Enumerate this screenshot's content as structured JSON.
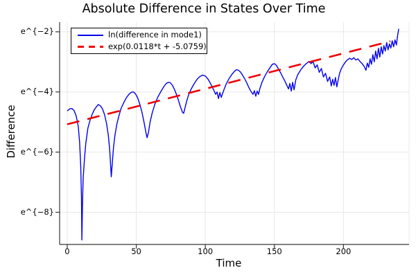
{
  "chart_data": {
    "type": "line",
    "title": "Absolute Difference in States Over Time",
    "xlabel": "Time",
    "ylabel": "Difference",
    "yscale": "ln (y axis labeled as powers of e)",
    "xlim": [
      -5.5,
      247.5
    ],
    "ylim_ln": [
      -9.07,
      -1.68
    ],
    "grid": true,
    "legend_position": "top-left",
    "xticks": {
      "values": [
        0,
        50,
        100,
        150,
        200
      ],
      "labels": [
        "0",
        "50",
        "100",
        "150",
        "200"
      ]
    },
    "yticks": {
      "values_ln": [
        -2,
        -4,
        -6,
        -8
      ],
      "labels": [
        "e^{−2}",
        "e^{−4}",
        "e^{−6}",
        "e^{−8}"
      ]
    },
    "colors": {
      "series": "#0000ee",
      "fit": "#ee0000",
      "grid": "#e8e8e8",
      "axis": "#363636",
      "text": "#000000",
      "background": "#ffffff"
    },
    "series": [
      {
        "name": "ln(difference in mode1)",
        "color": "#0000ee",
        "style": "solid",
        "points_t_ln": [
          [
            0,
            -4.63
          ],
          [
            2,
            -4.56
          ],
          [
            3.5,
            -4.55
          ],
          [
            5,
            -4.62
          ],
          [
            6.5,
            -4.8
          ],
          [
            8,
            -5.15
          ],
          [
            9,
            -5.7
          ],
          [
            9.8,
            -6.5
          ],
          [
            10.3,
            -7.5
          ],
          [
            10.6,
            -8.92
          ],
          [
            11,
            -7.8
          ],
          [
            11.5,
            -6.9
          ],
          [
            12.5,
            -6.2
          ],
          [
            13.5,
            -5.7
          ],
          [
            15,
            -5.2
          ],
          [
            16.5,
            -4.95
          ],
          [
            18,
            -4.75
          ],
          [
            19.5,
            -4.6
          ],
          [
            21,
            -4.5
          ],
          [
            22.5,
            -4.42
          ],
          [
            24,
            -4.46
          ],
          [
            25.5,
            -4.56
          ],
          [
            27,
            -4.75
          ],
          [
            28.5,
            -5.05
          ],
          [
            29.8,
            -5.45
          ],
          [
            30.8,
            -5.95
          ],
          [
            31.5,
            -6.5
          ],
          [
            31.9,
            -6.82
          ],
          [
            32.5,
            -6.45
          ],
          [
            33.5,
            -5.85
          ],
          [
            34.5,
            -5.45
          ],
          [
            36,
            -5.05
          ],
          [
            37.5,
            -4.78
          ],
          [
            39,
            -4.55
          ],
          [
            41,
            -4.35
          ],
          [
            43,
            -4.18
          ],
          [
            45,
            -4.06
          ],
          [
            46.5,
            -4.01
          ],
          [
            48,
            -4.0
          ],
          [
            49.5,
            -4.07
          ],
          [
            51,
            -4.2
          ],
          [
            52.5,
            -4.4
          ],
          [
            54,
            -4.65
          ],
          [
            55.5,
            -4.98
          ],
          [
            56.8,
            -5.3
          ],
          [
            57.8,
            -5.52
          ],
          [
            58.8,
            -5.35
          ],
          [
            60,
            -5.0
          ],
          [
            61.5,
            -4.7
          ],
          [
            63.5,
            -4.4
          ],
          [
            65.5,
            -4.18
          ],
          [
            68,
            -3.97
          ],
          [
            70,
            -3.82
          ],
          [
            71.5,
            -3.73
          ],
          [
            73,
            -3.68
          ],
          [
            74.5,
            -3.69
          ],
          [
            76,
            -3.77
          ],
          [
            77.5,
            -3.9
          ],
          [
            79,
            -4.07
          ],
          [
            80.5,
            -4.27
          ],
          [
            82,
            -4.5
          ],
          [
            83.5,
            -4.68
          ],
          [
            84.3,
            -4.71
          ],
          [
            85.3,
            -4.52
          ],
          [
            86.5,
            -4.3
          ],
          [
            88,
            -4.08
          ],
          [
            90,
            -3.88
          ],
          [
            92,
            -3.72
          ],
          [
            94,
            -3.58
          ],
          [
            96,
            -3.49
          ],
          [
            98,
            -3.44
          ],
          [
            100,
            -3.47
          ],
          [
            102,
            -3.58
          ],
          [
            104,
            -3.74
          ],
          [
            106,
            -3.93
          ],
          [
            107.5,
            -4.08
          ],
          [
            108.5,
            -4.0
          ],
          [
            109.5,
            -4.22
          ],
          [
            110.5,
            -4.02
          ],
          [
            111.5,
            -4.18
          ],
          [
            112.5,
            -4.05
          ],
          [
            113.5,
            -3.92
          ],
          [
            115,
            -3.75
          ],
          [
            117,
            -3.57
          ],
          [
            119,
            -3.43
          ],
          [
            121,
            -3.32
          ],
          [
            122.5,
            -3.26
          ],
          [
            124,
            -3.28
          ],
          [
            125.5,
            -3.34
          ],
          [
            127,
            -3.45
          ],
          [
            128.5,
            -3.56
          ],
          [
            130,
            -3.7
          ],
          [
            131.5,
            -3.85
          ],
          [
            133,
            -3.98
          ],
          [
            134.5,
            -4.08
          ],
          [
            135.5,
            -3.96
          ],
          [
            136.5,
            -4.14
          ],
          [
            137.5,
            -3.97
          ],
          [
            138.5,
            -4.08
          ],
          [
            139.5,
            -3.88
          ],
          [
            141,
            -3.68
          ],
          [
            143,
            -3.48
          ],
          [
            145,
            -3.32
          ],
          [
            147,
            -3.18
          ],
          [
            148.5,
            -3.08
          ],
          [
            150,
            -3.06
          ],
          [
            151.5,
            -3.12
          ],
          [
            153,
            -3.24
          ],
          [
            154.5,
            -3.36
          ],
          [
            156,
            -3.5
          ],
          [
            157.5,
            -3.63
          ],
          [
            159,
            -3.78
          ],
          [
            160.2,
            -3.9
          ],
          [
            161.2,
            -3.72
          ],
          [
            162.2,
            -3.97
          ],
          [
            163.2,
            -3.68
          ],
          [
            164.2,
            -3.93
          ],
          [
            165.5,
            -3.6
          ],
          [
            167,
            -3.42
          ],
          [
            169,
            -3.27
          ],
          [
            171,
            -3.15
          ],
          [
            173,
            -3.06
          ],
          [
            175,
            -2.99
          ],
          [
            176.5,
            -3.06
          ],
          [
            178,
            -2.99
          ],
          [
            179.5,
            -3.2
          ],
          [
            181,
            -3.1
          ],
          [
            182.5,
            -3.35
          ],
          [
            184,
            -3.22
          ],
          [
            185.5,
            -3.5
          ],
          [
            187,
            -3.38
          ],
          [
            188.5,
            -3.65
          ],
          [
            190,
            -3.5
          ],
          [
            191.2,
            -3.8
          ],
          [
            192.2,
            -3.58
          ],
          [
            193.2,
            -3.78
          ],
          [
            194.2,
            -3.52
          ],
          [
            195.2,
            -3.83
          ],
          [
            196.2,
            -3.6
          ],
          [
            197.2,
            -3.38
          ],
          [
            198.5,
            -3.22
          ],
          [
            200,
            -3.1
          ],
          [
            201.5,
            -3.0
          ],
          [
            203,
            -2.93
          ],
          [
            204.5,
            -2.88
          ],
          [
            206,
            -2.92
          ],
          [
            207.5,
            -2.86
          ],
          [
            209,
            -2.94
          ],
          [
            210.5,
            -2.9
          ],
          [
            212,
            -2.99
          ],
          [
            213.5,
            -3.06
          ],
          [
            215,
            -3.15
          ],
          [
            216.3,
            -3.28
          ],
          [
            217.3,
            -3.04
          ],
          [
            218.3,
            -3.18
          ],
          [
            219.3,
            -2.9
          ],
          [
            220.3,
            -3.08
          ],
          [
            221.3,
            -2.76
          ],
          [
            222.3,
            -3.0
          ],
          [
            223.3,
            -2.64
          ],
          [
            224.3,
            -2.9
          ],
          [
            225.3,
            -2.55
          ],
          [
            226.3,
            -2.84
          ],
          [
            227.3,
            -2.5
          ],
          [
            228.3,
            -2.74
          ],
          [
            229.3,
            -2.46
          ],
          [
            230.3,
            -2.64
          ],
          [
            231.3,
            -2.36
          ],
          [
            232.3,
            -2.6
          ],
          [
            233.3,
            -2.4
          ],
          [
            234.3,
            -2.54
          ],
          [
            235.3,
            -2.3
          ],
          [
            236.3,
            -2.5
          ],
          [
            237.3,
            -2.27
          ],
          [
            238.3,
            -2.44
          ],
          [
            239.2,
            -2.12
          ],
          [
            240,
            -1.9
          ]
        ]
      },
      {
        "name": "exp(0.0118*t + -5.0759)",
        "color": "#ee0000",
        "style": "dashed",
        "fit": {
          "slope": 0.0118,
          "intercept": -5.0759,
          "t_range": [
            0,
            234
          ]
        }
      }
    ]
  }
}
